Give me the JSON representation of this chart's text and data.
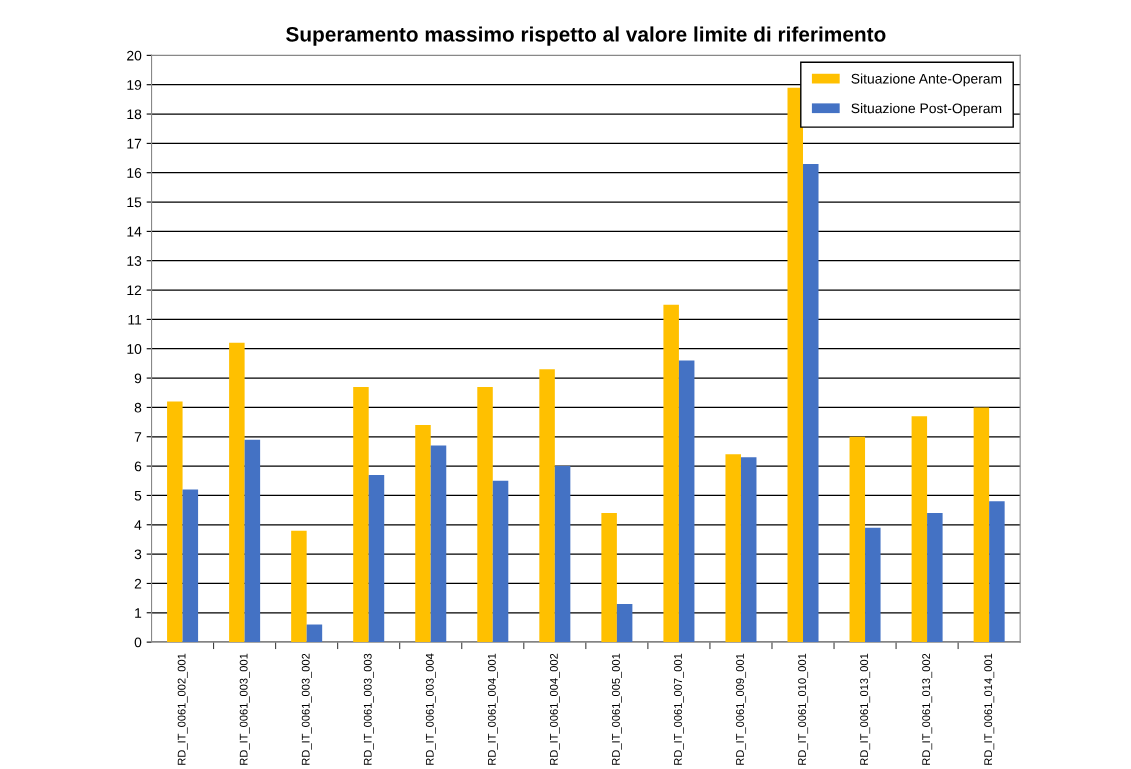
{
  "chart_data": {
    "type": "bar",
    "title": "Superamento massimo rispetto al valore limite di riferimento",
    "categories": [
      "RD_IT_0061_002_001",
      "RD_IT_0061_003_001",
      "RD_IT_0061_003_002",
      "RD_IT_0061_003_003",
      "RD_IT_0061_003_004",
      "RD_IT_0061_004_001",
      "RD_IT_0061_004_002",
      "RD_IT_0061_005_001",
      "RD_IT_0061_007_001",
      "RD_IT_0061_009_001",
      "RD_IT_0061_010_001",
      "RD_IT_0061_013_001",
      "RD_IT_0061_013_002",
      "RD_IT_0061_014_001"
    ],
    "series": [
      {
        "name": "Situazione Ante-Operam",
        "color": "#ffc000",
        "values": [
          8.2,
          10.2,
          3.8,
          8.7,
          7.4,
          8.7,
          9.3,
          4.4,
          11.5,
          6.4,
          18.9,
          7.0,
          7.7,
          8.0
        ]
      },
      {
        "name": "Situazione Post-Operam",
        "color": "#4472c4",
        "values": [
          5.2,
          6.9,
          0.6,
          5.7,
          6.7,
          5.5,
          6.0,
          1.3,
          9.6,
          6.3,
          16.3,
          3.9,
          4.4,
          4.8
        ]
      }
    ],
    "ylim": [
      0,
      20
    ],
    "yticks": [
      0,
      1,
      2,
      3,
      4,
      5,
      6,
      7,
      8,
      9,
      10,
      11,
      12,
      13,
      14,
      15,
      16,
      17,
      18,
      19,
      20
    ],
    "grid": "y",
    "legend": "top right"
  }
}
